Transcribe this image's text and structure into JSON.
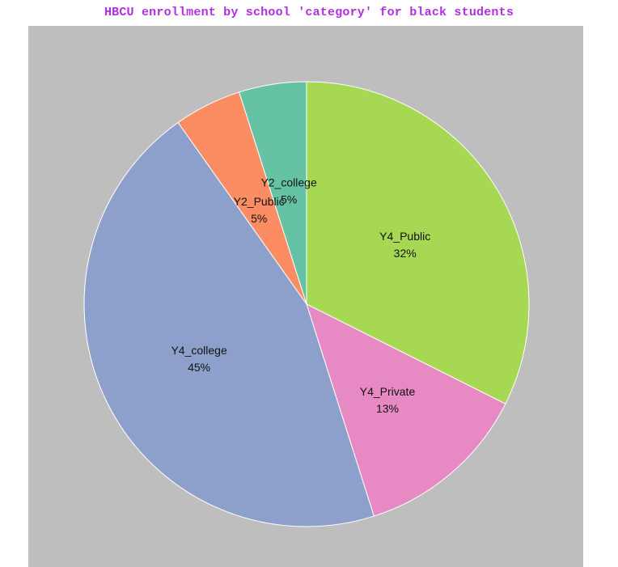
{
  "chart_data": {
    "type": "pie",
    "title": "HBCU enrollment by school 'category' for black students",
    "slices": [
      {
        "label": "Y4_Public",
        "pct_label": "32%",
        "value": 32.4,
        "color": "#a6d854"
      },
      {
        "label": "Y4_Private",
        "pct_label": "13%",
        "value": 12.7,
        "color": "#e78ac3"
      },
      {
        "label": "Y4_college",
        "pct_label": "45%",
        "value": 45.1,
        "color": "#8da0cb"
      },
      {
        "label": "Y2_Public",
        "pct_label": "5%",
        "value": 4.9,
        "color": "#fc8d62"
      },
      {
        "label": "Y2_college",
        "pct_label": "5%",
        "value": 4.9,
        "color": "#66c2a5"
      }
    ],
    "start_angle": "12 o'clock",
    "direction": "clockwise",
    "background_color": "#bebebe",
    "title_color": "#b22ee6"
  }
}
